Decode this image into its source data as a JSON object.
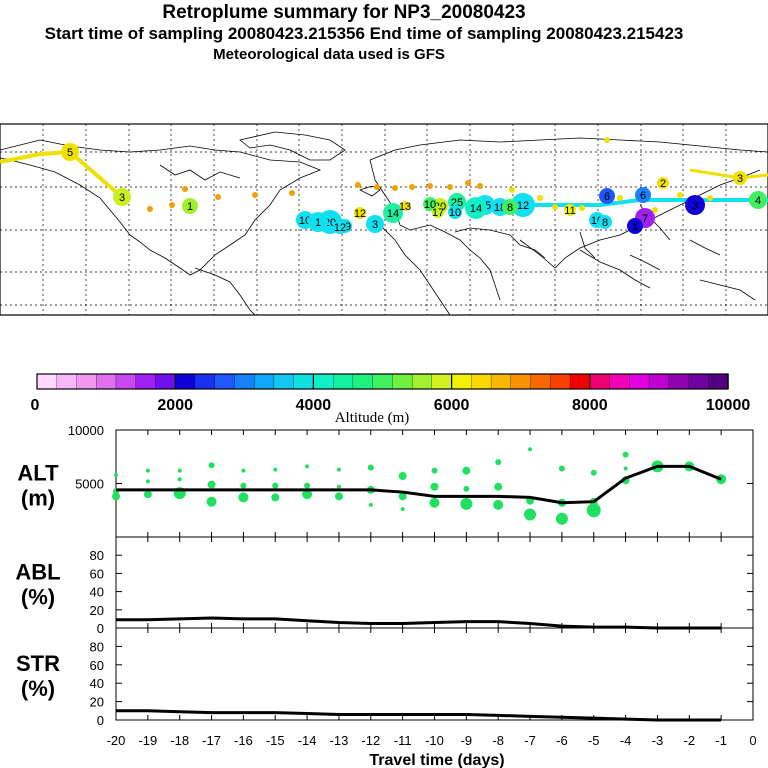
{
  "header": {
    "title": "Retroplume summary for NP3_20080423",
    "sampling": "Start time of sampling 20080423.215356     End time of sampling 20080423.215423",
    "met": "Meteorological data used is GFS"
  },
  "colors": {
    "altitude_scale": [
      "#ffd8ff",
      "#f8b8f8",
      "#f098f0",
      "#e070f0",
      "#c848f0",
      "#a020f0",
      "#7010f0",
      "#1000d8",
      "#1830f0",
      "#2058f8",
      "#1880f8",
      "#10a8f8",
      "#10c8f0",
      "#10e0e0",
      "#10f0c8",
      "#10f0a0",
      "#20f080",
      "#40f060",
      "#70f040",
      "#a0f030",
      "#d0f020",
      "#f0f000",
      "#f8d800",
      "#f8b800",
      "#f89000",
      "#f86800",
      "#f84000",
      "#f00000",
      "#f00070",
      "#f000b8",
      "#e000e0",
      "#c000d0",
      "#9000b0",
      "#7000a0",
      "#500080"
    ],
    "dot": "#20e060"
  },
  "colorbar": {
    "min_label": "0",
    "labels": [
      "2000",
      "4000",
      "6000",
      "8000",
      "10000"
    ],
    "axis_label": "Altitude (m)"
  },
  "map": {
    "description_labels": [
      "5",
      "3",
      "1",
      "10",
      "20",
      "19",
      "12",
      "14",
      "3",
      "13",
      "1",
      "12",
      "20",
      "25",
      "10",
      "10",
      "17",
      "15",
      "14",
      "18",
      "12",
      "8",
      "6",
      "11",
      "10",
      "8",
      "7",
      "3",
      "6",
      "4",
      "3",
      "2",
      "1"
    ]
  },
  "chart_data": [
    {
      "type": "line",
      "panel": "ALT",
      "ylabel": "ALT",
      "yunits": "(m)",
      "yticks": [
        "10000",
        "5000"
      ],
      "ylim": [
        0,
        10000
      ],
      "x": [
        -20,
        -19,
        -18,
        -17,
        -16,
        -15,
        -14,
        -13,
        -12,
        -11,
        -10,
        -9,
        -8,
        -7,
        -6,
        -5,
        -4,
        -3,
        -2,
        -1
      ],
      "series": [
        {
          "name": "median altitude",
          "values": [
            4400,
            4400,
            4400,
            4400,
            4400,
            4400,
            4400,
            4400,
            4400,
            4200,
            3800,
            3800,
            3800,
            3700,
            3200,
            3300,
            5500,
            6600,
            6600,
            5400
          ]
        }
      ],
      "scatter": [
        {
          "x": -20,
          "y": 3800,
          "r": 4
        },
        {
          "x": -20,
          "y": 5800,
          "r": 2
        },
        {
          "x": -20,
          "y": 4300,
          "r": 3
        },
        {
          "x": -19,
          "y": 4000,
          "r": 4
        },
        {
          "x": -19,
          "y": 6200,
          "r": 2
        },
        {
          "x": -19,
          "y": 5200,
          "r": 2
        },
        {
          "x": -18,
          "y": 4100,
          "r": 6
        },
        {
          "x": -18,
          "y": 5400,
          "r": 2
        },
        {
          "x": -18,
          "y": 6200,
          "r": 2
        },
        {
          "x": -17,
          "y": 3300,
          "r": 5
        },
        {
          "x": -17,
          "y": 4900,
          "r": 4
        },
        {
          "x": -17,
          "y": 6700,
          "r": 3
        },
        {
          "x": -16,
          "y": 3700,
          "r": 5
        },
        {
          "x": -16,
          "y": 4800,
          "r": 3
        },
        {
          "x": -16,
          "y": 6200,
          "r": 2
        },
        {
          "x": -15,
          "y": 3700,
          "r": 4
        },
        {
          "x": -15,
          "y": 4800,
          "r": 3
        },
        {
          "x": -15,
          "y": 6300,
          "r": 2
        },
        {
          "x": -14,
          "y": 4000,
          "r": 5
        },
        {
          "x": -14,
          "y": 6600,
          "r": 2
        },
        {
          "x": -14,
          "y": 4800,
          "r": 3
        },
        {
          "x": -13,
          "y": 3800,
          "r": 4
        },
        {
          "x": -13,
          "y": 4700,
          "r": 2
        },
        {
          "x": -13,
          "y": 6300,
          "r": 2
        },
        {
          "x": -12,
          "y": 4400,
          "r": 4
        },
        {
          "x": -12,
          "y": 6500,
          "r": 3
        },
        {
          "x": -12,
          "y": 3000,
          "r": 2
        },
        {
          "x": -11,
          "y": 3800,
          "r": 4
        },
        {
          "x": -11,
          "y": 5700,
          "r": 4
        },
        {
          "x": -11,
          "y": 2600,
          "r": 2
        },
        {
          "x": -10,
          "y": 3200,
          "r": 5
        },
        {
          "x": -10,
          "y": 4700,
          "r": 4
        },
        {
          "x": -10,
          "y": 6200,
          "r": 3
        },
        {
          "x": -9,
          "y": 3100,
          "r": 6
        },
        {
          "x": -9,
          "y": 6200,
          "r": 4
        },
        {
          "x": -9,
          "y": 4500,
          "r": 3
        },
        {
          "x": -8,
          "y": 3000,
          "r": 5
        },
        {
          "x": -8,
          "y": 4700,
          "r": 4
        },
        {
          "x": -8,
          "y": 7000,
          "r": 3
        },
        {
          "x": -7,
          "y": 2100,
          "r": 6
        },
        {
          "x": -7,
          "y": 3400,
          "r": 4
        },
        {
          "x": -7,
          "y": 8200,
          "r": 2
        },
        {
          "x": -6,
          "y": 1700,
          "r": 6
        },
        {
          "x": -6,
          "y": 3200,
          "r": 4
        },
        {
          "x": -6,
          "y": 6400,
          "r": 3
        },
        {
          "x": -5,
          "y": 2500,
          "r": 7
        },
        {
          "x": -5,
          "y": 6000,
          "r": 3
        },
        {
          "x": -5,
          "y": 3300,
          "r": 4
        },
        {
          "x": -4,
          "y": 5300,
          "r": 4
        },
        {
          "x": -4,
          "y": 7700,
          "r": 3
        },
        {
          "x": -4,
          "y": 6400,
          "r": 2
        },
        {
          "x": -3,
          "y": 6600,
          "r": 6
        },
        {
          "x": -2,
          "y": 6600,
          "r": 5
        },
        {
          "x": -1,
          "y": 5400,
          "r": 5
        }
      ]
    },
    {
      "type": "line",
      "panel": "ABL",
      "ylabel": "ABL",
      "yunits": "(%)",
      "yticks": [
        "80",
        "60",
        "40",
        "20",
        "0"
      ],
      "ylim": [
        0,
        100
      ],
      "x": [
        -20,
        -19,
        -18,
        -17,
        -16,
        -15,
        -14,
        -13,
        -12,
        -11,
        -10,
        -9,
        -8,
        -7,
        -6,
        -5,
        -4,
        -3,
        -2,
        -1
      ],
      "series": [
        {
          "name": "ABL fraction",
          "values": [
            9,
            9,
            10,
            11,
            10,
            10,
            8,
            6,
            5,
            5,
            6,
            7,
            7,
            5,
            2,
            1,
            1,
            0,
            0,
            0
          ]
        }
      ]
    },
    {
      "type": "line",
      "panel": "STR",
      "ylabel": "STR",
      "yunits": "(%)",
      "yticks": [
        "80",
        "60",
        "40",
        "20",
        "0"
      ],
      "ylim": [
        0,
        100
      ],
      "x": [
        -20,
        -19,
        -18,
        -17,
        -16,
        -15,
        -14,
        -13,
        -12,
        -11,
        -10,
        -9,
        -8,
        -7,
        -6,
        -5,
        -4,
        -3,
        -2,
        -1
      ],
      "series": [
        {
          "name": "STR fraction",
          "values": [
            10,
            10,
            9,
            8,
            8,
            8,
            7,
            6,
            6,
            6,
            6,
            6,
            5,
            4,
            3,
            2,
            1,
            0,
            0,
            0
          ]
        }
      ]
    }
  ],
  "xaxis": {
    "ticks": [
      "-20",
      "-19",
      "-18",
      "-17",
      "-16",
      "-15",
      "-14",
      "-13",
      "-12",
      "-11",
      "-10",
      "-9",
      "-8",
      "-7",
      "-6",
      "-5",
      "-4",
      "-3",
      "-2",
      "-1",
      "0"
    ],
    "label": "Travel time (days)"
  }
}
